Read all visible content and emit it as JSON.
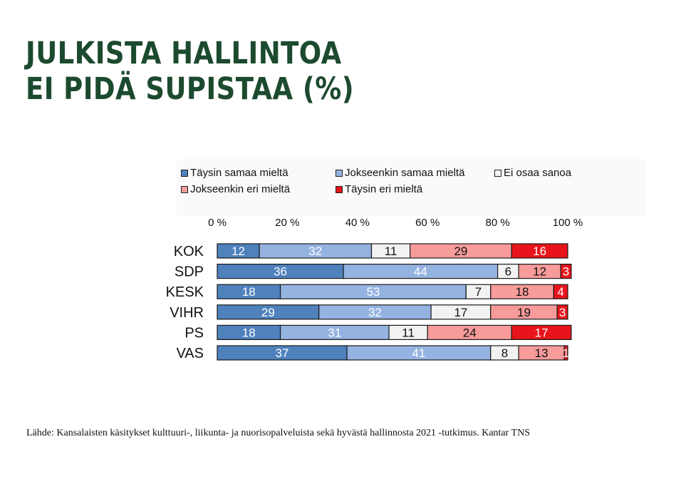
{
  "title_line1": "JULKISTA HALLINTOA",
  "title_line2": "EI PIDÄ SUPISTAA (%)",
  "source": "Lähde: Kansalaisten käsitykset kulttuuri-, liikunta- ja nuorisopalveluista sekä hyvästä hallinnosta 2021 -tutkimus. Kantar TNS",
  "chart_data": {
    "type": "bar",
    "orientation": "horizontal",
    "stacked": true,
    "categories": [
      "KOK",
      "SDP",
      "KESK",
      "VIHR",
      "PS",
      "VAS"
    ],
    "series": [
      {
        "name": "Täysin samaa mieltä",
        "color": "#4f81bd",
        "values": [
          12,
          36,
          18,
          29,
          18,
          37
        ]
      },
      {
        "name": "Jokseenkin samaa mieltä",
        "color": "#95b3e1",
        "values": [
          32,
          44,
          53,
          32,
          31,
          41
        ]
      },
      {
        "name": "Ei osaa sanoa",
        "color": "#f2f2f2",
        "values": [
          11,
          6,
          7,
          17,
          11,
          8
        ]
      },
      {
        "name": "Jokseenkin eri mieltä",
        "color": "#f79b9b",
        "values": [
          29,
          12,
          18,
          19,
          24,
          13
        ]
      },
      {
        "name": "Täysin eri mieltä",
        "color": "#e8141b",
        "values": [
          16,
          3,
          4,
          3,
          17,
          1
        ]
      }
    ],
    "xticks": [
      "0 %",
      "20 %",
      "40 %",
      "60 %",
      "80 %",
      "100 %"
    ],
    "xlim": [
      0,
      100
    ],
    "grid": false,
    "legend_position": "top"
  }
}
